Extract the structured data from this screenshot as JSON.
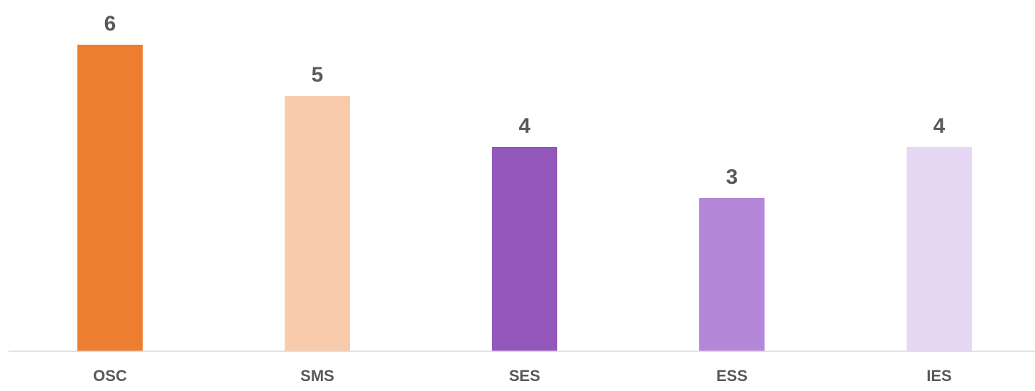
{
  "chart_data": {
    "type": "bar",
    "title": "",
    "xlabel": "",
    "ylabel": "",
    "categories": [
      "OSC",
      "SMS",
      "SES",
      "ESS",
      "IES"
    ],
    "values": [
      6,
      5,
      4,
      3,
      4
    ],
    "colors": [
      "#ED7D31",
      "#F8CBAD",
      "#9457BC",
      "#B487D9",
      "#E6D8F2"
    ],
    "ylim": [
      0,
      6
    ],
    "grid": false,
    "data_labels": true,
    "axis_color": "#D9D9D9",
    "label_color": "#595959"
  }
}
